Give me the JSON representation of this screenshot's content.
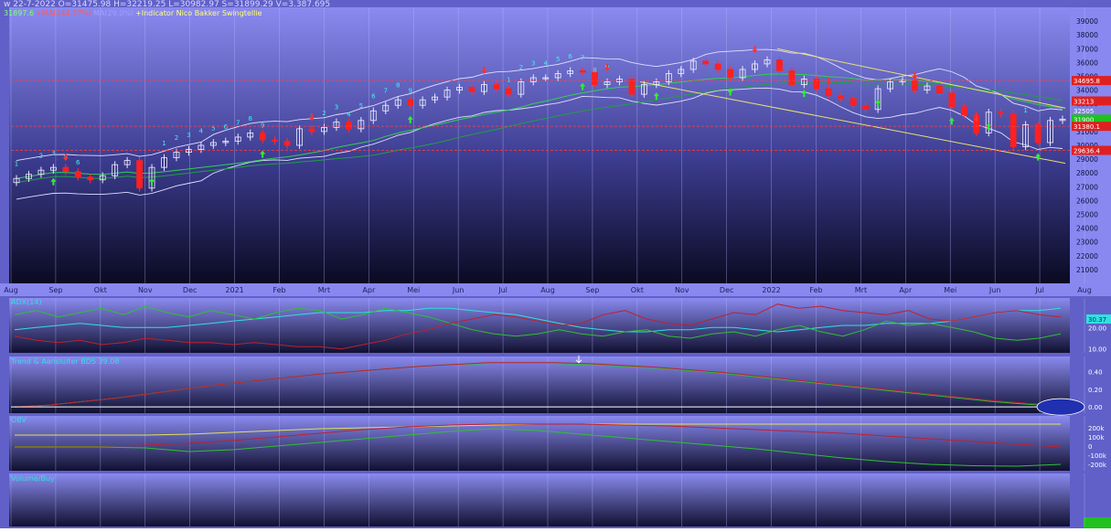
{
  "header": {
    "quote_line": "w 22-7-2022  O=31475.98  H=32219.25  L=30982.97  S=31899.29  V=3.387.695",
    "legend": [
      {
        "text": "31897.6",
        "color": "#7fff7f"
      },
      {
        "text": "+MA(244.27%)",
        "color": "#ff5a5a"
      },
      {
        "text": "MA(29.0%)",
        "color": "#a0a0ff"
      },
      {
        "text": "+Indicator Nico Bakker Swingtellie",
        "color": "#ffff80"
      }
    ]
  },
  "panels": {
    "adx_label": "ADX(14)",
    "trend_label": "Trend & Aansluiter BDS 39.08",
    "obv_label": "OBV",
    "volume_label": "Volume/Buy"
  },
  "chart_data": [
    {
      "type": "candlestick",
      "name": "price",
      "x_labels": [
        "Aug",
        "Sep",
        "Okt",
        "Nov",
        "Dec",
        "2021",
        "Feb",
        "Mrt",
        "Apr",
        "Mei",
        "Jun",
        "Jul",
        "Aug",
        "Sep",
        "Okt",
        "Nov",
        "Dec",
        "2022",
        "Feb",
        "Mrt",
        "Apr",
        "Mei",
        "Jun",
        "Jul",
        "Aug"
      ],
      "ylim": [
        20000,
        40000
      ],
      "yticks": [
        21000,
        22000,
        23000,
        24000,
        25000,
        26000,
        27000,
        28000,
        29000,
        30000,
        31000,
        32000,
        33000,
        34000,
        35000,
        36000,
        37000,
        38000,
        39000
      ],
      "closes": [
        27600,
        27900,
        28200,
        28400,
        28100,
        27700,
        27500,
        27800,
        28600,
        28900,
        26900,
        28400,
        29100,
        29500,
        29700,
        30000,
        30200,
        30300,
        30600,
        30900,
        30400,
        30300,
        30000,
        31200,
        31000,
        31300,
        31700,
        31200,
        31800,
        32500,
        32900,
        33300,
        32900,
        33300,
        33500,
        34000,
        34200,
        33900,
        34400,
        34100,
        33700,
        34600,
        34900,
        34900,
        35200,
        35400,
        35300,
        34400,
        34600,
        34800,
        33700,
        34400,
        34600,
        35200,
        35500,
        36100,
        35900,
        35500,
        34900,
        35500,
        35900,
        36200,
        35400,
        34400,
        34800,
        34100,
        33600,
        33400,
        32900,
        32600,
        34100,
        34600,
        34700,
        34000,
        34300,
        33800,
        32800,
        32200,
        30900,
        32400,
        32300,
        29900,
        31500,
        30200,
        31800,
        31899
      ],
      "swing_counts": [
        {
          "i": 0,
          "n": "1"
        },
        {
          "i": 2,
          "n": "2"
        },
        {
          "i": 3,
          "n": "3"
        },
        {
          "i": 4,
          "n": "5"
        },
        {
          "i": 5,
          "n": "6"
        },
        {
          "i": 12,
          "n": "1"
        },
        {
          "i": 13,
          "n": "2"
        },
        {
          "i": 14,
          "n": "3"
        },
        {
          "i": 15,
          "n": "4"
        },
        {
          "i": 16,
          "n": "5"
        },
        {
          "i": 17,
          "n": "6"
        },
        {
          "i": 18,
          "n": "7"
        },
        {
          "i": 19,
          "n": "8"
        },
        {
          "i": 20,
          "n": "9"
        },
        {
          "i": 24,
          "n": "1"
        },
        {
          "i": 25,
          "n": "2"
        },
        {
          "i": 26,
          "n": "3"
        },
        {
          "i": 27,
          "n": "4"
        },
        {
          "i": 28,
          "n": "5"
        },
        {
          "i": 29,
          "n": "6"
        },
        {
          "i": 30,
          "n": "7"
        },
        {
          "i": 31,
          "n": "8"
        },
        {
          "i": 32,
          "n": "9"
        },
        {
          "i": 40,
          "n": "1"
        },
        {
          "i": 41,
          "n": "2"
        },
        {
          "i": 42,
          "n": "3"
        },
        {
          "i": 43,
          "n": "4"
        },
        {
          "i": 44,
          "n": "5"
        },
        {
          "i": 45,
          "n": "6"
        },
        {
          "i": 46,
          "n": "7"
        },
        {
          "i": 47,
          "n": "8"
        },
        {
          "i": 48,
          "n": "9"
        },
        {
          "i": 82,
          "n": "1"
        }
      ],
      "price_tags": [
        {
          "label": "34695.8",
          "value": 34695,
          "color": "#e02020"
        },
        {
          "label": "33213",
          "value": 33213,
          "color": "#e02020"
        },
        {
          "label": "32505",
          "value": 32505,
          "color": "#8080e0"
        },
        {
          "label": "31900",
          "value": 31900,
          "color": "#20c020"
        },
        {
          "label": "31380.1",
          "value": 31380,
          "color": "#e02020"
        },
        {
          "label": "29636.4",
          "value": 29636,
          "color": "#e02020"
        }
      ],
      "hlines": [
        {
          "value": 34695,
          "color": "#ff4040"
        },
        {
          "value": 31380,
          "color": "#ff4040"
        },
        {
          "value": 29636,
          "color": "#ff4040"
        }
      ]
    },
    {
      "type": "line",
      "name": "adx",
      "yticks": [
        10,
        20
      ],
      "ytick_labels": [
        "10.00",
        "20.00"
      ],
      "ylim": [
        9,
        33
      ],
      "value_tag": "30.37",
      "series": [
        {
          "color": "#30e0e0",
          "values": [
            19,
            20,
            21,
            22,
            21,
            20,
            20,
            20,
            21,
            22,
            23,
            24,
            25,
            26,
            27,
            27,
            27,
            28,
            28,
            29,
            29,
            28,
            27,
            26,
            24,
            22,
            20,
            19,
            18,
            18,
            19,
            19,
            20,
            20,
            19,
            18,
            19,
            20,
            21,
            21,
            22,
            22,
            22,
            23,
            25,
            27,
            28,
            28,
            29
          ]
        },
        {
          "color": "#30c030",
          "values": [
            26,
            28,
            25,
            27,
            29,
            26,
            30,
            27,
            25,
            28,
            26,
            24,
            27,
            29,
            28,
            24,
            26,
            29,
            27,
            25,
            22,
            19,
            17,
            16,
            17,
            19,
            17,
            16,
            18,
            19,
            16,
            15,
            17,
            18,
            16,
            19,
            21,
            18,
            16,
            19,
            23,
            21,
            22,
            20,
            18,
            15,
            14,
            15,
            17
          ]
        },
        {
          "color": "#c02030",
          "values": [
            16,
            14,
            13,
            14,
            12,
            13,
            15,
            14,
            13,
            13,
            12,
            13,
            12,
            11,
            11,
            10,
            12,
            14,
            17,
            19,
            22,
            24,
            26,
            25,
            23,
            21,
            22,
            26,
            28,
            24,
            22,
            21,
            24,
            27,
            26,
            31,
            29,
            30,
            28,
            27,
            26,
            28,
            24,
            23,
            25,
            27,
            28,
            26,
            25
          ]
        }
      ]
    },
    {
      "type": "line",
      "name": "trend",
      "yticks": [
        0,
        0.2,
        0.4
      ],
      "ytick_labels": [
        "0.00",
        "0.20",
        "0.40"
      ],
      "ylim": [
        -0.05,
        0.55
      ],
      "series": [
        {
          "color": "#30c030",
          "values": [
            0,
            0.02,
            0.06,
            0.1,
            0.15,
            0.2,
            0.25,
            0.29,
            0.33,
            0.37,
            0.4,
            0.43,
            0.46,
            0.48,
            0.49,
            0.5,
            0.49,
            0.48,
            0.46,
            0.44,
            0.41,
            0.38,
            0.34,
            0.3,
            0.26,
            0.22,
            0.18,
            0.14,
            0.1,
            0.06,
            0.03,
            0.01
          ]
        },
        {
          "color": "#c02030",
          "values": [
            0,
            0.02,
            0.06,
            0.1,
            0.15,
            0.2,
            0.25,
            0.29,
            0.33,
            0.37,
            0.4,
            0.43,
            0.46,
            0.48,
            0.5,
            0.5,
            0.5,
            0.49,
            0.47,
            0.45,
            0.42,
            0.39,
            0.35,
            0.31,
            0.27,
            0.23,
            0.19,
            0.15,
            0.11,
            0.07,
            0.04,
            0.02
          ]
        }
      ]
    },
    {
      "type": "line",
      "name": "obv",
      "yticks": [
        200000,
        100000,
        0,
        -100000,
        -200000
      ],
      "ytick_labels": [
        "200k",
        "100k",
        "0",
        "-100k",
        "-200k"
      ],
      "ylim": [
        -260000,
        300000
      ],
      "series": [
        {
          "color": "#e0e060",
          "values": [
            120000,
            120000,
            120000,
            120000,
            130000,
            150000,
            170000,
            190000,
            200000,
            210000,
            220000,
            230000,
            240000,
            240000,
            240000,
            240000,
            240000,
            240000,
            240000,
            240000,
            240000,
            240000,
            240000,
            240000,
            240000
          ]
        },
        {
          "color": "#c02030",
          "values": [
            0,
            0,
            0,
            10000,
            30000,
            60000,
            100000,
            140000,
            180000,
            210000,
            230000,
            240000,
            240000,
            240000,
            230000,
            220000,
            200000,
            180000,
            160000,
            140000,
            110000,
            80000,
            50000,
            20000,
            -10000
          ]
        },
        {
          "color": "#30c030",
          "values": [
            -10000,
            -10000,
            -10000,
            -20000,
            -60000,
            -40000,
            0,
            40000,
            80000,
            120000,
            160000,
            190000,
            170000,
            130000,
            90000,
            50000,
            10000,
            -30000,
            -80000,
            -130000,
            -170000,
            -200000,
            -215000,
            -220000,
            -200000
          ]
        }
      ]
    }
  ]
}
